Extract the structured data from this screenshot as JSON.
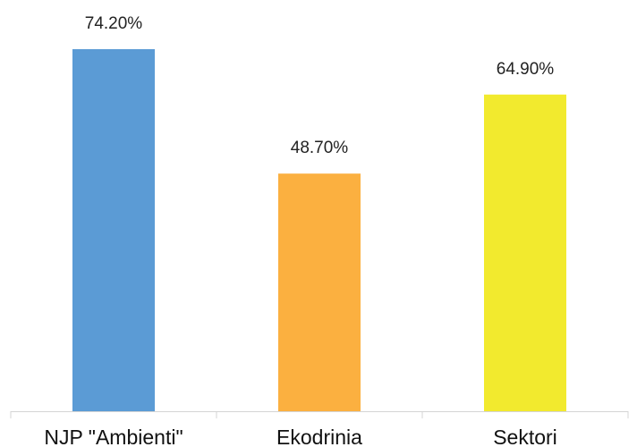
{
  "chart_data": {
    "type": "bar",
    "categories": [
      "NJP \"Ambienti\"",
      "Ekodrinia",
      "Sektori"
    ],
    "values": [
      74.2,
      48.7,
      64.9
    ],
    "data_labels": [
      "74.20%",
      "48.70%",
      "64.90%"
    ],
    "colors": [
      "#5b9bd5",
      "#fbb040",
      "#f2ea2e"
    ],
    "title": "",
    "xlabel": "",
    "ylabel": "",
    "ylim": [
      0,
      80
    ],
    "grid": false,
    "legend": "none"
  }
}
